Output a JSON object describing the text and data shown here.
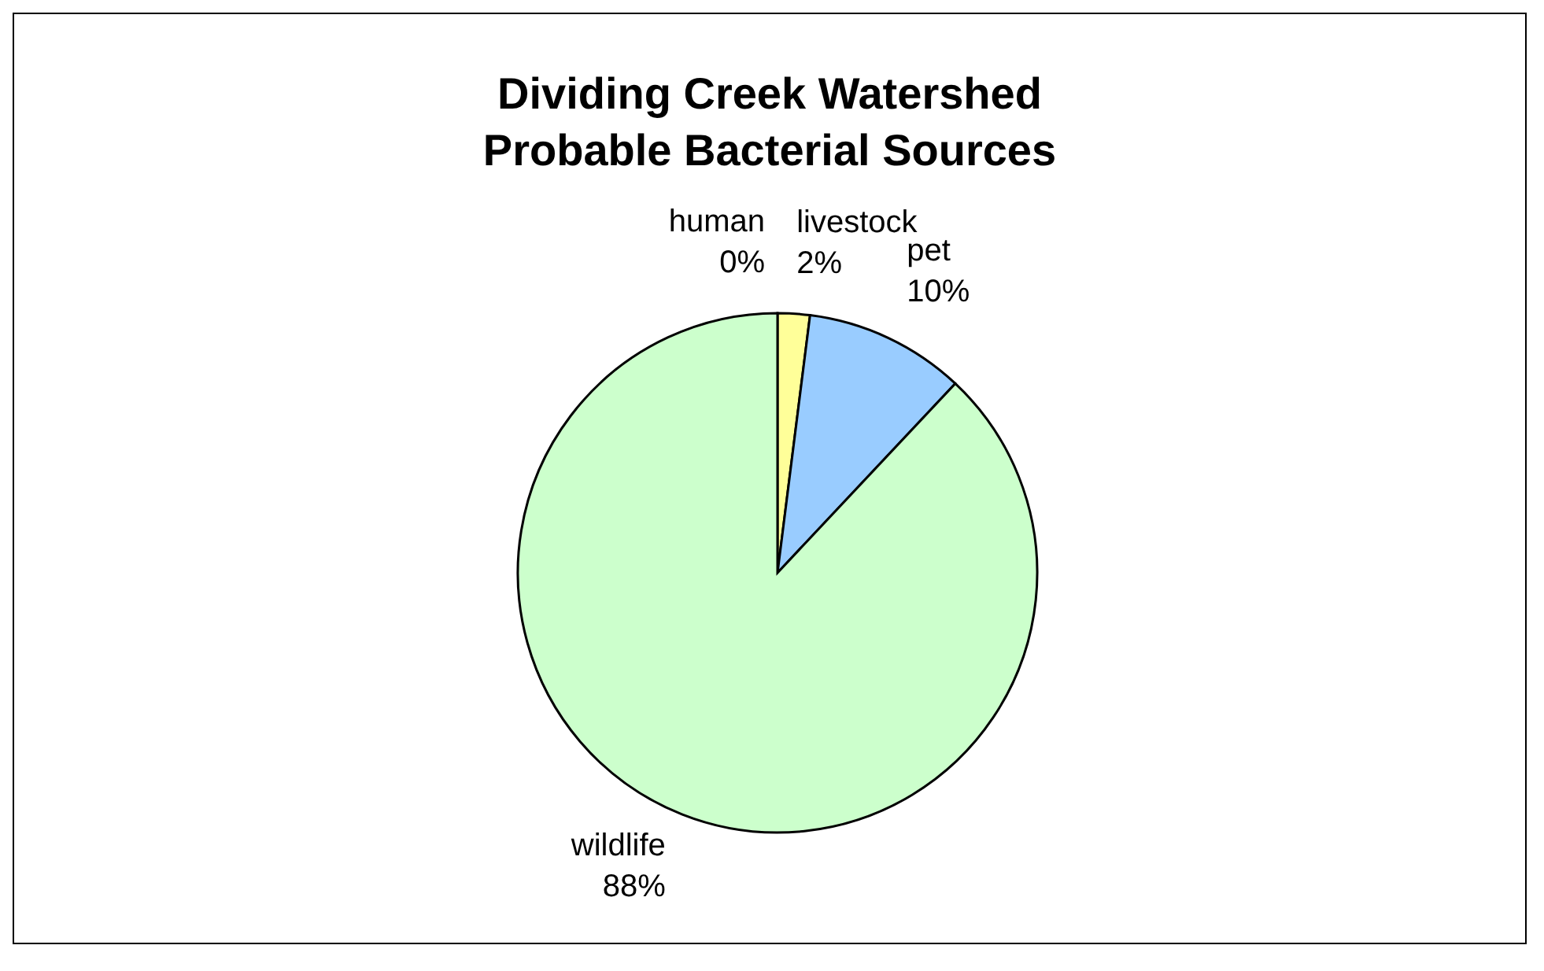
{
  "chart_data": {
    "type": "pie",
    "title": "Dividing Creek Watershed\nProbable Bacterial Sources",
    "categories": [
      "human",
      "livestock",
      "pet",
      "wildlife"
    ],
    "values": [
      0,
      2,
      10,
      88
    ],
    "value_labels": [
      "0%",
      "2%",
      "10%",
      "88%"
    ],
    "colors": [
      "#ffffff",
      "#ffff99",
      "#99ccff",
      "#ccffcc"
    ],
    "legend": false
  }
}
